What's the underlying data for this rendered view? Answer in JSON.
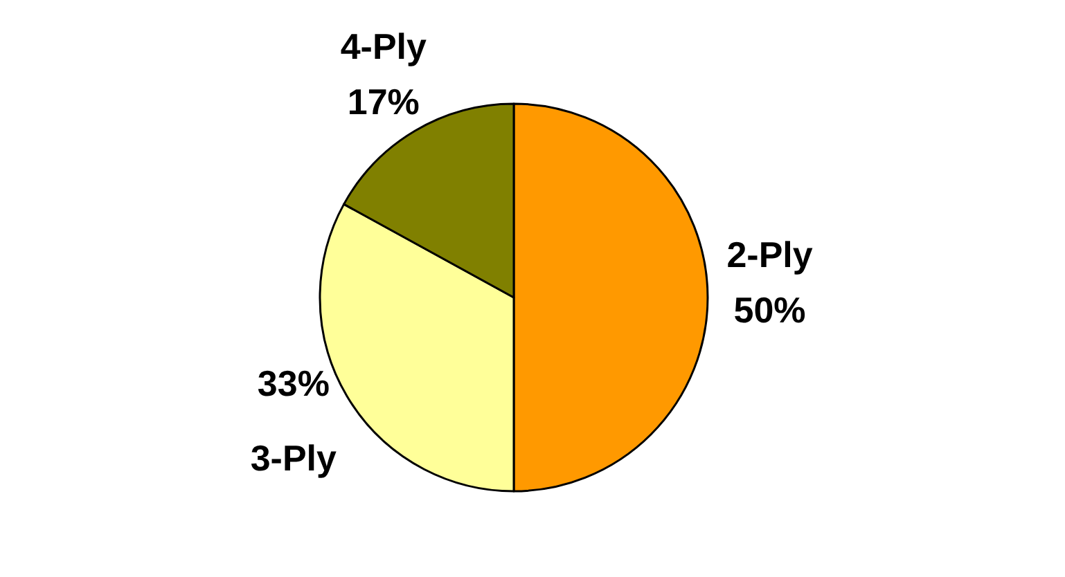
{
  "chart_data": {
    "type": "pie",
    "categories": [
      "2-Ply",
      "3-Ply",
      "4-Ply"
    ],
    "values": [
      50,
      33,
      17
    ],
    "colors": [
      "#ff9900",
      "#ffff99",
      "#808000"
    ],
    "value_labels": [
      "50%",
      "33%",
      "17%"
    ]
  }
}
